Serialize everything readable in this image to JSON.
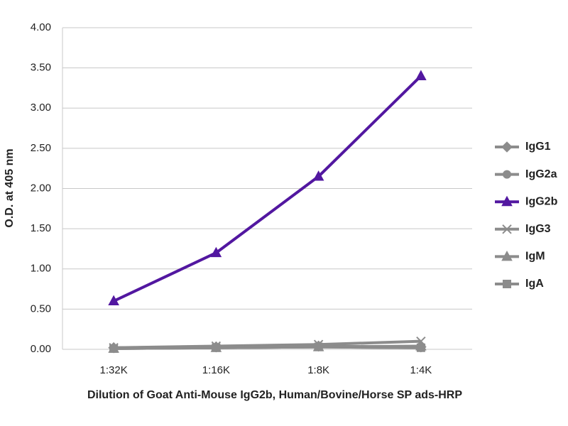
{
  "chart_data": {
    "type": "line",
    "xlabel": "Dilution of Goat Anti-Mouse IgG2b, Human/Bovine/Horse SP ads-HRP",
    "ylabel": "O.D. at 405 nm",
    "categories": [
      "1:32K",
      "1:16K",
      "1:8K",
      "1:4K"
    ],
    "series": [
      {
        "name": "IgG1",
        "color": "#8c8c8c",
        "marker": "diamond",
        "values": [
          0.02,
          0.03,
          0.04,
          0.03
        ]
      },
      {
        "name": "IgG2a",
        "color": "#8c8c8c",
        "marker": "circle",
        "values": [
          0.01,
          0.02,
          0.03,
          0.02
        ]
      },
      {
        "name": "IgG2b",
        "color": "#5217a0",
        "marker": "triangle",
        "values": [
          0.6,
          1.2,
          2.15,
          3.4
        ]
      },
      {
        "name": "IgG3",
        "color": "#8c8c8c",
        "marker": "x",
        "values": [
          0.02,
          0.04,
          0.06,
          0.1
        ]
      },
      {
        "name": "IgM",
        "color": "#8c8c8c",
        "marker": "triangle",
        "values": [
          0.01,
          0.02,
          0.03,
          0.04
        ]
      },
      {
        "name": "IgA",
        "color": "#8c8c8c",
        "marker": "square",
        "values": [
          0.01,
          0.02,
          0.03,
          0.02
        ]
      }
    ],
    "ylim": [
      0,
      4
    ],
    "yticks": [
      {
        "value": 0,
        "label": "0.00"
      },
      {
        "value": 0.5,
        "label": "0.50"
      },
      {
        "value": 1,
        "label": "1.00"
      },
      {
        "value": 1.5,
        "label": "1.50"
      },
      {
        "value": 2,
        "label": "2.00"
      },
      {
        "value": 2.5,
        "label": "2.50"
      },
      {
        "value": 3,
        "label": "3.00"
      },
      {
        "value": 3.5,
        "label": "3.50"
      },
      {
        "value": 4,
        "label": "4.00"
      }
    ],
    "grid": true,
    "legend": "right"
  }
}
